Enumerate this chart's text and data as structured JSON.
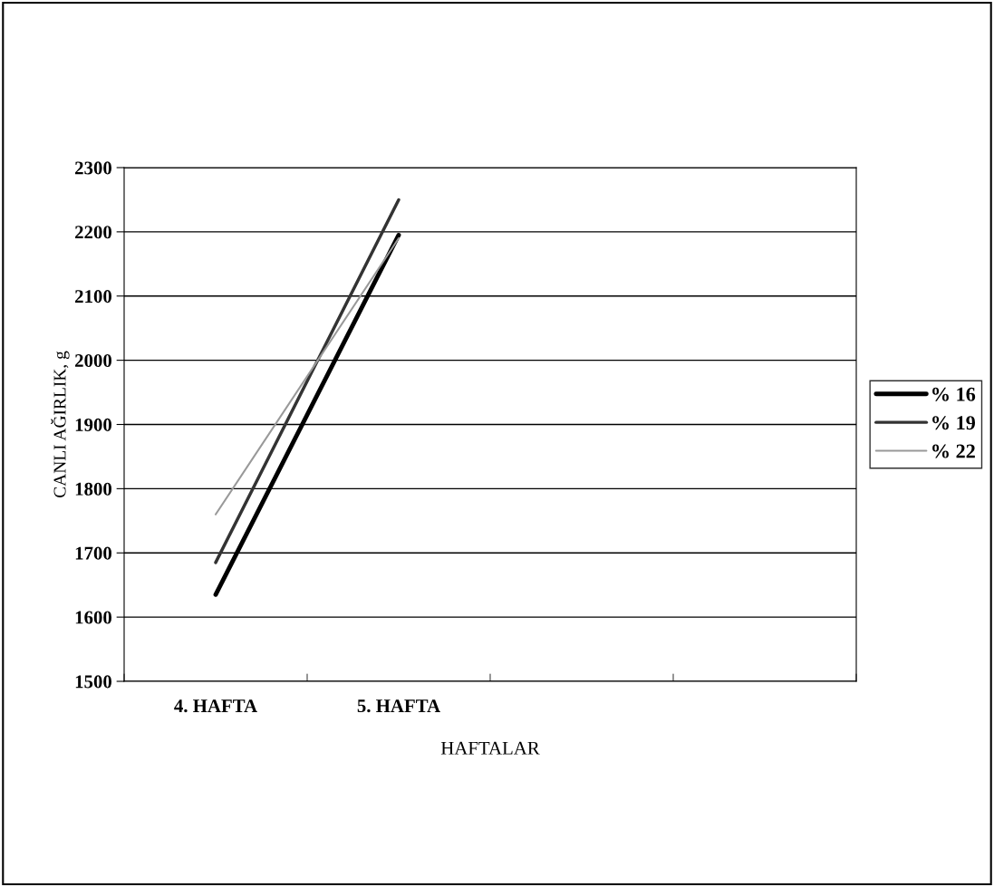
{
  "chart_data": {
    "type": "line",
    "xlabel": "HAFTALAR",
    "ylabel": "CANLI AĞIRLIK, g",
    "categories": [
      "4. HAFTA",
      "5. HAFTA",
      null,
      null
    ],
    "series": [
      {
        "name": "% 16",
        "color": "#000000",
        "values": [
          1635,
          2195,
          null,
          null
        ]
      },
      {
        "name": "% 19",
        "color": "#333333",
        "values": [
          1685,
          2250,
          null,
          null
        ]
      },
      {
        "name": "% 22",
        "color": "#999999",
        "values": [
          1760,
          2190,
          null,
          null
        ]
      }
    ],
    "ylim": [
      1500,
      2300
    ],
    "yticks": [
      1500,
      1600,
      1700,
      1800,
      1900,
      2000,
      2100,
      2200,
      2300
    ],
    "grid": "y",
    "legend": "right",
    "marker": "none",
    "line_style": "solid"
  }
}
